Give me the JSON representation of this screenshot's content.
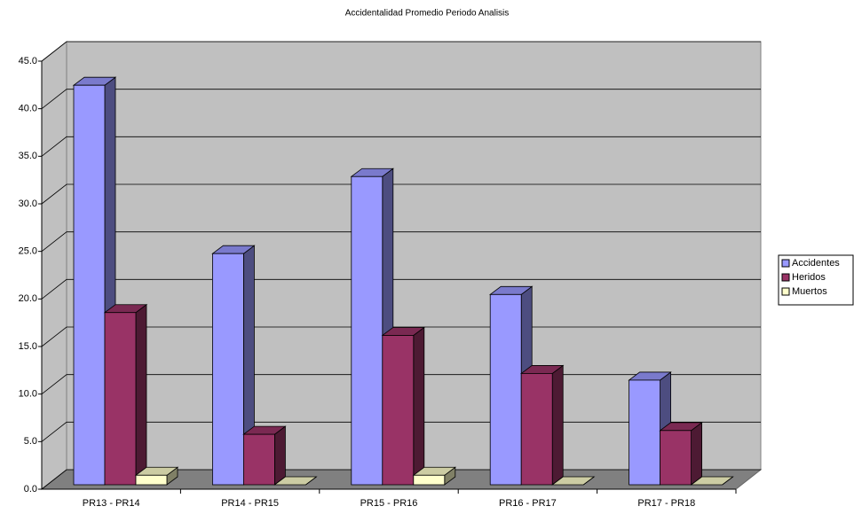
{
  "chart_data": {
    "type": "bar3d",
    "title": "Accidentalidad Promedio Periodo Analisis",
    "categories": [
      "PR13 - PR14",
      "PR14 - PR15",
      "PR15 - PR16",
      "PR16 - PR17",
      "PR17 - PR18"
    ],
    "series": [
      {
        "name": "Accidentes",
        "color": "#9999ff",
        "values": [
          42.0,
          24.3,
          32.4,
          20.0,
          11.0
        ]
      },
      {
        "name": "Heridos",
        "color": "#993366",
        "values": [
          18.1,
          5.3,
          15.7,
          11.7,
          5.7
        ]
      },
      {
        "name": "Muertos",
        "color": "#ffffcc",
        "values": [
          1.0,
          0,
          1.0,
          0,
          0
        ]
      }
    ],
    "ylim": [
      0,
      45
    ],
    "yticks": [
      {
        "value": 0,
        "label": "0.0"
      },
      {
        "value": 5,
        "label": "5.0"
      },
      {
        "value": 10,
        "label": "10.0"
      },
      {
        "value": 15,
        "label": "15.0"
      },
      {
        "value": 20,
        "label": "20.0"
      },
      {
        "value": 25,
        "label": "25.0"
      },
      {
        "value": 30,
        "label": "30.0"
      },
      {
        "value": 35,
        "label": "35.0"
      },
      {
        "value": 40,
        "label": "40.0"
      },
      {
        "value": 45,
        "label": "45.0"
      }
    ],
    "grid": true,
    "legend": "right"
  }
}
